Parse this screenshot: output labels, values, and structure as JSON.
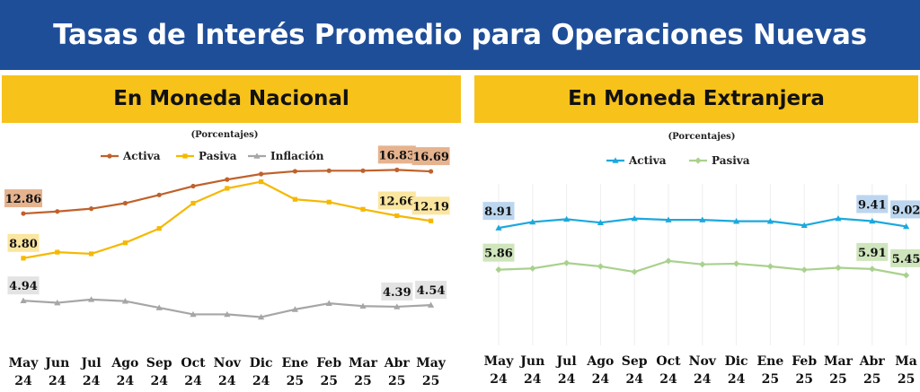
{
  "title": "Tasas de Interés Promedio para Operaciones Nuevas",
  "colors": {
    "banner": "#1f4e99",
    "header": "#f7c21a",
    "activa_nacional": "#c0612b",
    "pasiva_nacional": "#f5b800",
    "inflacion": "#a6a6a6",
    "activa_extranjera": "#1ca8dd",
    "pasiva_extranjera": "#a9d18e"
  },
  "panels": {
    "left": {
      "header": "En Moneda Nacional",
      "subtitle": "(Porcentajes)"
    },
    "right": {
      "header": "En Moneda Extranjera",
      "subtitle": "(Porcentajes)"
    }
  },
  "chart_data": [
    {
      "type": "line",
      "subtitle": "(Porcentajes)",
      "title": "En Moneda Nacional",
      "categories": [
        "May 24",
        "Jun 24",
        "Jul 24",
        "Ago 24",
        "Sep 24",
        "Oct 24",
        "Nov 24",
        "Dic 24",
        "Ene 25",
        "Feb 25",
        "Mar 25",
        "Abr 25",
        "May 25"
      ],
      "ylim": [
        3,
        18
      ],
      "legend": "top",
      "grid": false,
      "series": [
        {
          "name": "Activa",
          "color": "#c0612b",
          "values": [
            12.86,
            13.05,
            13.3,
            13.8,
            14.55,
            15.35,
            15.95,
            16.45,
            16.7,
            16.75,
            16.75,
            16.83,
            16.69
          ],
          "labels": [
            {
              "index": 0,
              "text": "12.86",
              "bg": "#e6b38f"
            },
            {
              "index": 11,
              "text": "16.83",
              "bg": "#e6b38f"
            },
            {
              "index": 12,
              "text": "16.69",
              "bg": "#e6b38f"
            }
          ]
        },
        {
          "name": "Pasiva",
          "color": "#f5b800",
          "values": [
            8.8,
            9.35,
            9.2,
            10.2,
            11.5,
            13.8,
            15.15,
            15.75,
            14.15,
            13.9,
            13.25,
            12.66,
            12.19
          ],
          "labels": [
            {
              "index": 0,
              "text": "8.80",
              "bg": "#fbe6a0"
            },
            {
              "index": 11,
              "text": "12.66",
              "bg": "#fbe6a0"
            },
            {
              "index": 12,
              "text": "12.19",
              "bg": "#fbe6a0"
            }
          ]
        },
        {
          "name": "Inflación",
          "color": "#a6a6a6",
          "values": [
            4.94,
            4.75,
            5.05,
            4.9,
            4.3,
            3.7,
            3.7,
            3.45,
            4.15,
            4.7,
            4.45,
            4.39,
            4.54
          ],
          "labels": [
            {
              "index": 0,
              "text": "4.94",
              "bg": "#e3e3e3"
            },
            {
              "index": 11,
              "text": "4.39",
              "bg": "#e3e3e3"
            },
            {
              "index": 12,
              "text": "4.54",
              "bg": "#e3e3e3"
            }
          ]
        }
      ]
    },
    {
      "type": "line",
      "subtitle": "(Porcentajes)",
      "title": "En Moneda Extranjera",
      "categories": [
        "May 24",
        "Jun 24",
        "Jul 24",
        "Ago 24",
        "Sep 24",
        "Oct 24",
        "Nov 24",
        "Dic 24",
        "Ene 25",
        "Feb 25",
        "Mar 25",
        "Abr 25",
        "Ma 25"
      ],
      "ylim": [
        0,
        12
      ],
      "legend": "top",
      "grid": true,
      "series": [
        {
          "name": "Activa",
          "color": "#1ca8dd",
          "values": [
            8.91,
            9.35,
            9.55,
            9.3,
            9.6,
            9.5,
            9.5,
            9.4,
            9.4,
            9.1,
            9.6,
            9.41,
            9.02
          ],
          "labels": [
            {
              "index": 0,
              "text": "8.91",
              "bg": "#bcd6ef"
            },
            {
              "index": 11,
              "text": "9.41",
              "bg": "#bcd6ef"
            },
            {
              "index": 12,
              "text": "9.02",
              "bg": "#bcd6ef"
            }
          ]
        },
        {
          "name": "Pasiva",
          "color": "#a9d18e",
          "values": [
            5.86,
            5.95,
            6.35,
            6.1,
            5.7,
            6.5,
            6.25,
            6.3,
            6.1,
            5.85,
            6.0,
            5.91,
            5.45
          ],
          "labels": [
            {
              "index": 0,
              "text": "5.86",
              "bg": "#cfe5bc"
            },
            {
              "index": 11,
              "text": "5.91",
              "bg": "#cfe5bc"
            },
            {
              "index": 12,
              "text": "5.45",
              "bg": "#cfe5bc"
            }
          ]
        }
      ]
    }
  ]
}
